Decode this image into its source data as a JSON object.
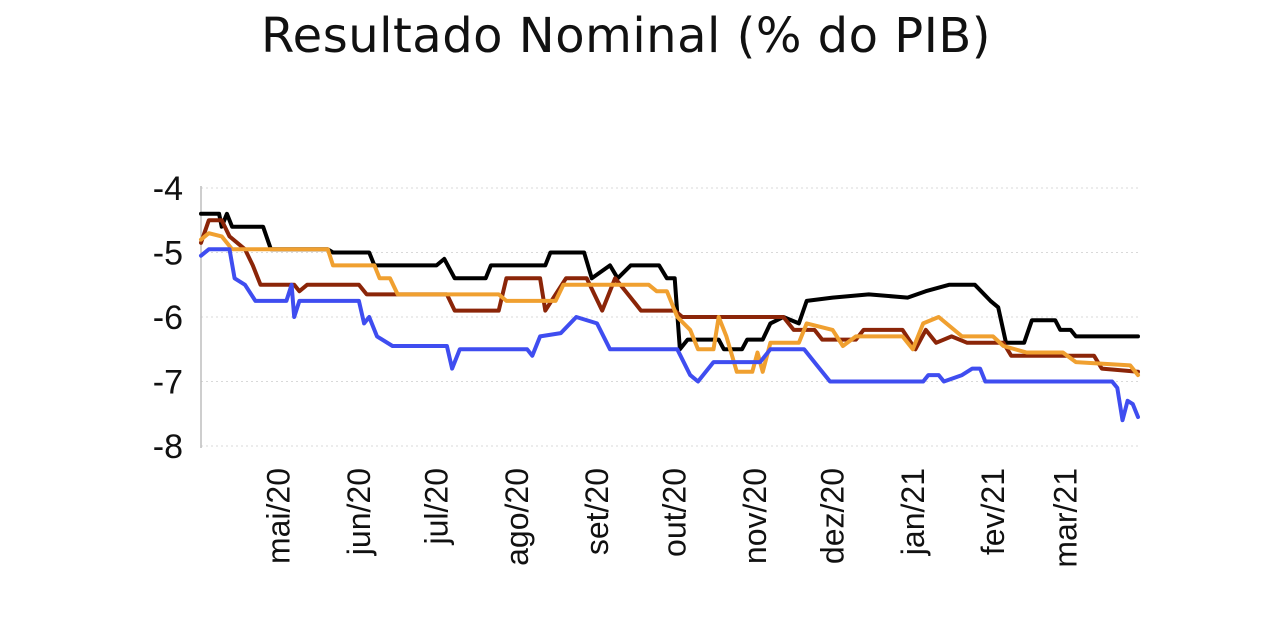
{
  "chart_data": {
    "type": "line",
    "title": "Resultado Nominal (% do PIB)",
    "xlabel": "",
    "ylabel": "",
    "ylim": [
      -8,
      -4
    ],
    "yticks": [
      -4,
      -5,
      -6,
      -7,
      -8
    ],
    "xlim": [
      "2020-04-01",
      "2021-03-29"
    ],
    "xticks": [
      {
        "date": "2020-05-01",
        "label": "mai/20"
      },
      {
        "date": "2020-06-01",
        "label": "jun/20"
      },
      {
        "date": "2020-07-01",
        "label": "jul/20"
      },
      {
        "date": "2020-08-01",
        "label": "ago/20"
      },
      {
        "date": "2020-09-01",
        "label": "set/20"
      },
      {
        "date": "2020-10-01",
        "label": "out/20"
      },
      {
        "date": "2020-11-01",
        "label": "nov/20"
      },
      {
        "date": "2020-12-01",
        "label": "dez/20"
      },
      {
        "date": "2021-01-01",
        "label": "jan/21"
      },
      {
        "date": "2021-02-01",
        "label": "fev/21"
      },
      {
        "date": "2021-03-01",
        "label": "mar/21"
      }
    ],
    "grid": true,
    "legend": "none",
    "series": [
      {
        "color": "#000000",
        "points": [
          [
            "2020-04-01",
            -4.4
          ],
          [
            "2020-04-08",
            -4.4
          ],
          [
            "2020-04-09",
            -4.6
          ],
          [
            "2020-04-11",
            -4.4
          ],
          [
            "2020-04-13",
            -4.6
          ],
          [
            "2020-04-25",
            -4.6
          ],
          [
            "2020-04-28",
            -4.95
          ],
          [
            "2020-05-20",
            -4.95
          ],
          [
            "2020-05-22",
            -5.0
          ],
          [
            "2020-06-05",
            -5.0
          ],
          [
            "2020-06-07",
            -5.2
          ],
          [
            "2020-07-01",
            -5.2
          ],
          [
            "2020-07-04",
            -5.1
          ],
          [
            "2020-07-08",
            -5.4
          ],
          [
            "2020-07-20",
            -5.4
          ],
          [
            "2020-07-22",
            -5.2
          ],
          [
            "2020-08-12",
            -5.2
          ],
          [
            "2020-08-14",
            -5.0
          ],
          [
            "2020-08-27",
            -5.0
          ],
          [
            "2020-08-30",
            -5.4
          ],
          [
            "2020-09-06",
            -5.2
          ],
          [
            "2020-09-09",
            -5.4
          ],
          [
            "2020-09-14",
            -5.2
          ],
          [
            "2020-09-25",
            -5.2
          ],
          [
            "2020-09-28",
            -5.4
          ],
          [
            "2020-10-01",
            -5.4
          ],
          [
            "2020-10-03",
            -6.5
          ],
          [
            "2020-10-06",
            -6.35
          ],
          [
            "2020-10-18",
            -6.35
          ],
          [
            "2020-10-20",
            -6.5
          ],
          [
            "2020-10-27",
            -6.5
          ],
          [
            "2020-10-29",
            -6.35
          ],
          [
            "2020-11-04",
            -6.35
          ],
          [
            "2020-11-07",
            -6.1
          ],
          [
            "2020-11-12",
            -6.0
          ],
          [
            "2020-11-18",
            -6.1
          ],
          [
            "2020-11-21",
            -5.75
          ],
          [
            "2020-12-01",
            -5.7
          ],
          [
            "2020-12-15",
            -5.65
          ],
          [
            "2020-12-30",
            -5.7
          ],
          [
            "2021-01-06",
            -5.6
          ],
          [
            "2021-01-15",
            -5.5
          ],
          [
            "2021-01-25",
            -5.5
          ],
          [
            "2021-01-31",
            -5.75
          ],
          [
            "2021-02-03",
            -5.85
          ],
          [
            "2021-02-06",
            -6.4
          ],
          [
            "2021-02-13",
            -6.4
          ],
          [
            "2021-02-16",
            -6.05
          ],
          [
            "2021-02-25",
            -6.05
          ],
          [
            "2021-02-27",
            -6.2
          ],
          [
            "2021-03-03",
            -6.2
          ],
          [
            "2021-03-05",
            -6.3
          ],
          [
            "2021-03-29",
            -6.3
          ]
        ]
      },
      {
        "color": "#8b2508",
        "points": [
          [
            "2020-04-01",
            -4.85
          ],
          [
            "2020-04-04",
            -4.5
          ],
          [
            "2020-04-09",
            -4.5
          ],
          [
            "2020-04-12",
            -4.75
          ],
          [
            "2020-04-18",
            -4.95
          ],
          [
            "2020-04-21",
            -5.2
          ],
          [
            "2020-04-24",
            -5.5
          ],
          [
            "2020-05-07",
            -5.5
          ],
          [
            "2020-05-09",
            -5.6
          ],
          [
            "2020-05-12",
            -5.5
          ],
          [
            "2020-06-01",
            -5.5
          ],
          [
            "2020-06-04",
            -5.65
          ],
          [
            "2020-07-05",
            -5.65
          ],
          [
            "2020-07-08",
            -5.9
          ],
          [
            "2020-07-25",
            -5.9
          ],
          [
            "2020-07-28",
            -5.4
          ],
          [
            "2020-08-10",
            -5.4
          ],
          [
            "2020-08-12",
            -5.9
          ],
          [
            "2020-08-16",
            -5.65
          ],
          [
            "2020-08-20",
            -5.4
          ],
          [
            "2020-08-28",
            -5.4
          ],
          [
            "2020-08-31",
            -5.65
          ],
          [
            "2020-09-03",
            -5.9
          ],
          [
            "2020-09-08",
            -5.4
          ],
          [
            "2020-09-14",
            -5.7
          ],
          [
            "2020-09-18",
            -5.9
          ],
          [
            "2020-09-25",
            -5.9
          ],
          [
            "2020-09-28",
            -5.9
          ],
          [
            "2020-10-01",
            -5.9
          ],
          [
            "2020-10-04",
            -6.0
          ],
          [
            "2020-11-12",
            -6.0
          ],
          [
            "2020-11-16",
            -6.2
          ],
          [
            "2020-11-24",
            -6.2
          ],
          [
            "2020-11-27",
            -6.35
          ],
          [
            "2020-12-10",
            -6.35
          ],
          [
            "2020-12-13",
            -6.2
          ],
          [
            "2020-12-28",
            -6.2
          ],
          [
            "2021-01-02",
            -6.5
          ],
          [
            "2021-01-06",
            -6.2
          ],
          [
            "2021-01-10",
            -6.4
          ],
          [
            "2021-01-16",
            -6.3
          ],
          [
            "2021-01-22",
            -6.4
          ],
          [
            "2021-02-05",
            -6.4
          ],
          [
            "2021-02-08",
            -6.6
          ],
          [
            "2021-03-12",
            -6.6
          ],
          [
            "2021-03-15",
            -6.8
          ],
          [
            "2021-03-29",
            -6.85
          ]
        ]
      },
      {
        "color": "#f0a030",
        "points": [
          [
            "2020-04-01",
            -4.8
          ],
          [
            "2020-04-04",
            -4.7
          ],
          [
            "2020-04-09",
            -4.75
          ],
          [
            "2020-04-13",
            -4.95
          ],
          [
            "2020-05-20",
            -4.95
          ],
          [
            "2020-05-22",
            -5.2
          ],
          [
            "2020-06-07",
            -5.2
          ],
          [
            "2020-06-09",
            -5.4
          ],
          [
            "2020-06-13",
            -5.4
          ],
          [
            "2020-06-16",
            -5.65
          ],
          [
            "2020-07-25",
            -5.65
          ],
          [
            "2020-07-28",
            -5.75
          ],
          [
            "2020-08-16",
            -5.75
          ],
          [
            "2020-08-19",
            -5.5
          ],
          [
            "2020-09-21",
            -5.5
          ],
          [
            "2020-09-24",
            -5.6
          ],
          [
            "2020-09-28",
            -5.6
          ],
          [
            "2020-10-02",
            -6.0
          ],
          [
            "2020-10-07",
            -6.2
          ],
          [
            "2020-10-10",
            -6.5
          ],
          [
            "2020-10-16",
            -6.5
          ],
          [
            "2020-10-18",
            -6.0
          ],
          [
            "2020-10-21",
            -6.3
          ],
          [
            "2020-10-25",
            -6.85
          ],
          [
            "2020-10-31",
            -6.85
          ],
          [
            "2020-11-02",
            -6.55
          ],
          [
            "2020-11-04",
            -6.85
          ],
          [
            "2020-11-07",
            -6.4
          ],
          [
            "2020-11-18",
            -6.4
          ],
          [
            "2020-11-21",
            -6.1
          ],
          [
            "2020-12-01",
            -6.2
          ],
          [
            "2020-12-05",
            -6.45
          ],
          [
            "2020-12-10",
            -6.3
          ],
          [
            "2020-12-28",
            -6.3
          ],
          [
            "2021-01-01",
            -6.5
          ],
          [
            "2021-01-05",
            -6.1
          ],
          [
            "2021-01-11",
            -6.0
          ],
          [
            "2021-01-20",
            -6.3
          ],
          [
            "2021-02-01",
            -6.3
          ],
          [
            "2021-02-05",
            -6.45
          ],
          [
            "2021-02-14",
            -6.55
          ],
          [
            "2021-02-28",
            -6.55
          ],
          [
            "2021-03-05",
            -6.7
          ],
          [
            "2021-03-26",
            -6.75
          ],
          [
            "2021-03-29",
            -6.9
          ]
        ]
      },
      {
        "color": "#3f4df0",
        "points": [
          [
            "2020-04-01",
            -5.05
          ],
          [
            "2020-04-04",
            -4.95
          ],
          [
            "2020-04-12",
            -4.95
          ],
          [
            "2020-04-14",
            -5.4
          ],
          [
            "2020-04-18",
            -5.5
          ],
          [
            "2020-04-22",
            -5.75
          ],
          [
            "2020-05-04",
            -5.75
          ],
          [
            "2020-05-06",
            -5.5
          ],
          [
            "2020-05-07",
            -6.0
          ],
          [
            "2020-05-09",
            -5.75
          ],
          [
            "2020-06-01",
            -5.75
          ],
          [
            "2020-06-03",
            -6.1
          ],
          [
            "2020-06-05",
            -6.0
          ],
          [
            "2020-06-08",
            -6.3
          ],
          [
            "2020-06-14",
            -6.45
          ],
          [
            "2020-07-05",
            -6.45
          ],
          [
            "2020-07-07",
            -6.8
          ],
          [
            "2020-07-10",
            -6.5
          ],
          [
            "2020-08-05",
            -6.5
          ],
          [
            "2020-08-07",
            -6.6
          ],
          [
            "2020-08-10",
            -6.3
          ],
          [
            "2020-08-18",
            -6.25
          ],
          [
            "2020-08-24",
            -6.0
          ],
          [
            "2020-09-01",
            -6.1
          ],
          [
            "2020-09-06",
            -6.5
          ],
          [
            "2020-10-02",
            -6.5
          ],
          [
            "2020-10-07",
            -6.9
          ],
          [
            "2020-10-10",
            -7.0
          ],
          [
            "2020-10-16",
            -6.7
          ],
          [
            "2020-11-03",
            -6.7
          ],
          [
            "2020-11-07",
            -6.5
          ],
          [
            "2020-11-20",
            -6.5
          ],
          [
            "2020-11-25",
            -6.75
          ],
          [
            "2020-11-30",
            -7.0
          ],
          [
            "2021-01-05",
            -7.0
          ],
          [
            "2021-01-07",
            -6.9
          ],
          [
            "2021-01-11",
            -6.9
          ],
          [
            "2021-01-13",
            -7.0
          ],
          [
            "2021-01-20",
            -6.9
          ],
          [
            "2021-01-24",
            -6.8
          ],
          [
            "2021-01-27",
            -6.8
          ],
          [
            "2021-01-29",
            -7.0
          ],
          [
            "2021-03-19",
            -7.0
          ],
          [
            "2021-03-21",
            -7.1
          ],
          [
            "2021-03-23",
            -7.6
          ],
          [
            "2021-03-25",
            -7.3
          ],
          [
            "2021-03-27",
            -7.35
          ],
          [
            "2021-03-29",
            -7.55
          ]
        ]
      }
    ]
  }
}
